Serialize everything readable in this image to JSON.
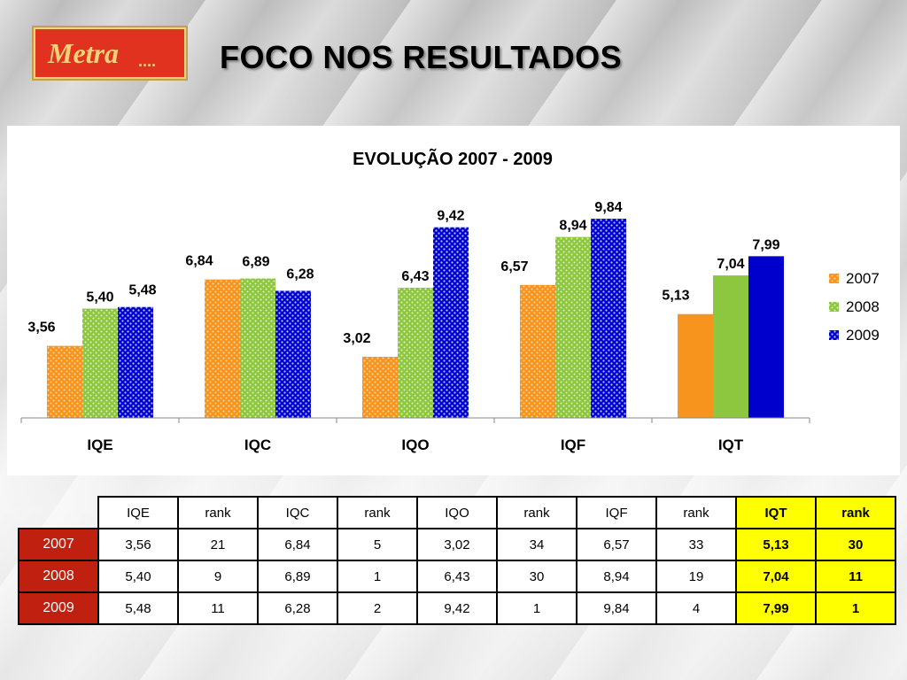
{
  "logo": {
    "text": "Metra"
  },
  "title": "FOCO NOS RESULTADOS",
  "colors": {
    "2007": "#f7941d",
    "2008": "#8dc63f",
    "2009": "#0000cc",
    "highlight": "#ffff00",
    "year_header": "#c0200f"
  },
  "chart_data": {
    "type": "bar",
    "title": "EVOLUÇÃO 2007 - 2009",
    "categories": [
      "IQE",
      "IQC",
      "IQO",
      "IQF",
      "IQT"
    ],
    "series": [
      {
        "name": "2007",
        "values": [
          3.56,
          6.84,
          3.02,
          6.57,
          5.13
        ],
        "labels": [
          "3,56",
          "6,84",
          "3,02",
          "6,57",
          "5,13"
        ]
      },
      {
        "name": "2008",
        "values": [
          5.4,
          6.89,
          6.43,
          8.94,
          7.04
        ],
        "labels": [
          "5,40",
          "6,89",
          "6,43",
          "8,94",
          "7,04"
        ]
      },
      {
        "name": "2009",
        "values": [
          5.48,
          6.28,
          9.42,
          9.84,
          7.99
        ],
        "labels": [
          "5,48",
          "6,28",
          "9,42",
          "9,84",
          "7,99"
        ]
      }
    ],
    "patterned_categories": [
      "IQE",
      "IQC",
      "IQO",
      "IQF"
    ],
    "solid_categories": [
      "IQT"
    ],
    "ylim": [
      0,
      10.5
    ],
    "legend_position": "right",
    "grid": false
  },
  "table": {
    "headers": [
      "IQE",
      "rank",
      "IQC",
      "rank",
      "IQO",
      "rank",
      "IQF",
      "rank",
      "IQT",
      "rank"
    ],
    "rows": [
      {
        "year": "2007",
        "cells": [
          "3,56",
          "21",
          "6,84",
          "5",
          "3,02",
          "34",
          "6,57",
          "33",
          "5,13",
          "30"
        ]
      },
      {
        "year": "2008",
        "cells": [
          "5,40",
          "9",
          "6,89",
          "1",
          "6,43",
          "30",
          "8,94",
          "19",
          "7,04",
          "11"
        ]
      },
      {
        "year": "2009",
        "cells": [
          "5,48",
          "11",
          "6,28",
          "2",
          "9,42",
          "1",
          "9,84",
          "4",
          "7,99",
          "1"
        ]
      }
    ]
  }
}
